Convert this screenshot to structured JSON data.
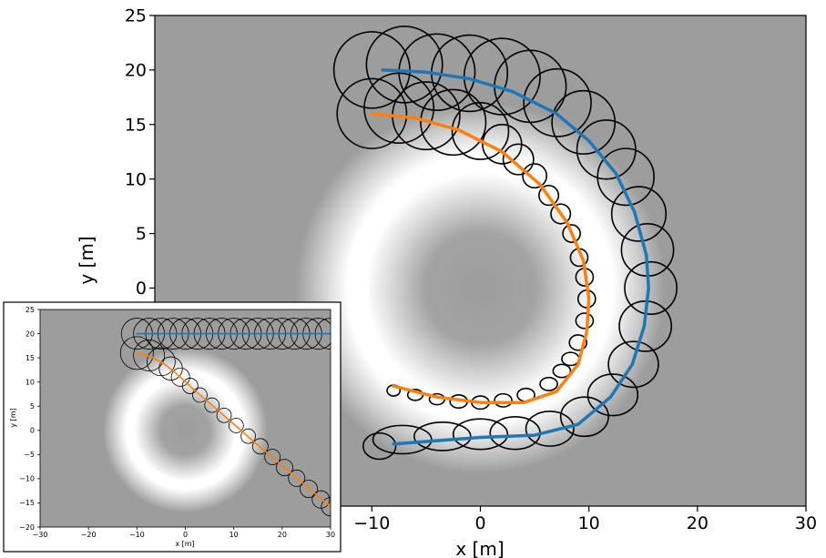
{
  "chart_data": [
    {
      "type": "line",
      "role": "main",
      "xlabel": "x [m]",
      "ylabel": "y [m]",
      "xlim": [
        -30,
        30
      ],
      "ylim": [
        -20,
        25
      ],
      "xticks": [
        -30,
        -20,
        -10,
        0,
        10,
        20,
        30
      ],
      "yticks": [
        -20,
        -15,
        -10,
        -5,
        0,
        5,
        10,
        15,
        20,
        25
      ],
      "background": "ring-shaped field: grey with white annulus centered at (0,0), radius ~10",
      "series": [
        {
          "color": "#1f77b4",
          "x": [
            -9,
            -5,
            -1,
            3,
            7,
            10,
            12.5,
            14.2,
            15.3,
            15.5,
            15.1,
            14,
            12,
            9,
            5,
            0,
            -4,
            -8
          ],
          "y": [
            20,
            19.8,
            19.2,
            18,
            16,
            13.5,
            10.5,
            7,
            3,
            0,
            -3.5,
            -7,
            -10,
            -12.5,
            -13.5,
            -13.7,
            -14,
            -14.3
          ]
        },
        {
          "color": "#ff7f0e",
          "x": [
            -10,
            -6,
            -2,
            2,
            5.5,
            8,
            9.5,
            10,
            9.8,
            9,
            7,
            4,
            0,
            -4,
            -8
          ],
          "y": [
            16,
            15.6,
            14.5,
            12.5,
            9.5,
            6,
            2.5,
            -1,
            -4,
            -7,
            -9.5,
            -10.5,
            -10.5,
            -10,
            -9
          ]
        }
      ],
      "uncertainty_ellipses": [
        {
          "series": 0,
          "x": [
            -10,
            -7,
            -4,
            -1,
            2,
            4.6,
            7.1,
            9.5,
            11.6,
            13.4,
            14.6,
            15.4,
            15.7,
            15.2,
            14.1,
            12.2,
            9.6,
            6.4,
            3.2,
            0,
            -3.5,
            -7.2,
            -9.3
          ],
          "y": [
            20,
            20.5,
            19.8,
            19.7,
            19.4,
            18.5,
            17,
            15.2,
            12.7,
            10.2,
            6.8,
            3.5,
            0,
            -3.5,
            -7,
            -9.8,
            -11.8,
            -12.9,
            -13.3,
            -13.4,
            -13.6,
            -13.9,
            -14.5
          ],
          "rx": [
            3.5,
            3.5,
            3.5,
            3.5,
            3.5,
            3.3,
            3.1,
            2.9,
            2.7,
            2.6,
            2.5,
            2.4,
            2.4,
            2.4,
            2.3,
            2.3,
            2.2,
            2.2,
            2.3,
            2.5,
            2.6,
            2.7,
            1.5
          ],
          "ry": [
            3.5,
            3.5,
            3.5,
            3.5,
            3.5,
            3.3,
            3.1,
            2.9,
            2.7,
            2.6,
            2.5,
            2.4,
            2.4,
            2.3,
            2.1,
            1.9,
            1.8,
            1.6,
            1.5,
            1.4,
            1.3,
            1.3,
            1.2
          ]
        },
        {
          "series": 1,
          "x": [
            -10,
            -7.5,
            -5,
            -2.5,
            0,
            2,
            3.5,
            5,
            6.3,
            7.4,
            8.4,
            9.1,
            9.6,
            9.8,
            9.6,
            9,
            8.3,
            7.5,
            6.3,
            4.2,
            2.1,
            0,
            -2,
            -4,
            -6,
            -8
          ],
          "y": [
            16,
            16.5,
            15.8,
            15.2,
            14.4,
            13.2,
            11.8,
            10.3,
            8.5,
            6.8,
            5,
            2.8,
            1,
            -1,
            -3,
            -5,
            -6.5,
            -7.6,
            -8.8,
            -9.8,
            -10.3,
            -10.5,
            -10.4,
            -10.2,
            -9.8,
            -9.4
          ],
          "rx": [
            3.2,
            3.2,
            3.1,
            3,
            2.6,
            1.8,
            1.4,
            1.1,
            0.9,
            0.9,
            0.8,
            0.8,
            0.8,
            0.8,
            0.8,
            0.8,
            0.8,
            0.8,
            0.8,
            0.8,
            0.8,
            0.8,
            0.8,
            0.7,
            0.7,
            0.6
          ],
          "ry": [
            3.2,
            3.2,
            3.1,
            3,
            2.6,
            1.8,
            1.4,
            1.1,
            0.9,
            0.9,
            0.8,
            0.8,
            0.8,
            0.8,
            0.7,
            0.7,
            0.6,
            0.6,
            0.6,
            0.6,
            0.6,
            0.6,
            0.6,
            0.5,
            0.5,
            0.5
          ]
        }
      ]
    },
    {
      "type": "line",
      "role": "inset",
      "xlabel": "x [m]",
      "ylabel": "y [m]",
      "xlim": [
        -30,
        30
      ],
      "ylim": [
        -20,
        25
      ],
      "xticks": [
        -30,
        -20,
        -10,
        0,
        10,
        20,
        30
      ],
      "yticks": [
        -20,
        -15,
        -10,
        -5,
        0,
        5,
        10,
        15,
        20,
        25
      ],
      "background": "ring-shaped field: grey with white annulus centered at (0,0), radius ~10",
      "series": [
        {
          "color": "#1f77b4",
          "x": [
            -10,
            30
          ],
          "y": [
            20,
            20
          ]
        },
        {
          "color": "#ff7f0e",
          "x": [
            -10,
            -7,
            -4,
            -1,
            2,
            6,
            10,
            14,
            18,
            22,
            26,
            30
          ],
          "y": [
            16,
            15.2,
            13.5,
            11,
            8.2,
            4.8,
            1.3,
            -2.2,
            -5.6,
            -9,
            -12.4,
            -15.8
          ]
        }
      ],
      "uncertainty_ellipses": [
        {
          "series": 0,
          "x": [
            -10,
            -7.5,
            -5,
            -2.5,
            0,
            2.5,
            5,
            7.5,
            10,
            12.5,
            15,
            17.5,
            20,
            22.5,
            25,
            27.5,
            30
          ],
          "y": [
            20,
            20,
            20,
            20,
            20,
            20,
            20,
            20,
            20,
            20,
            20,
            20,
            20,
            20,
            20,
            20,
            20
          ],
          "r": [
            3.2,
            3.2,
            3.2,
            3.2,
            3.2,
            3.2,
            3.2,
            3.2,
            3.2,
            3.2,
            3.2,
            3.2,
            3.2,
            3.2,
            3.2,
            3.2,
            3.2
          ]
        },
        {
          "series": 1,
          "x": [
            -10,
            -7.5,
            -5,
            -3,
            -1,
            1,
            3,
            5.5,
            8,
            10.5,
            13,
            15.5,
            18,
            20.5,
            23,
            25.5,
            28,
            30
          ],
          "y": [
            16,
            15.5,
            14.2,
            12.8,
            11,
            9.2,
            7.3,
            5.2,
            3.1,
            1,
            -1.2,
            -3.3,
            -5.5,
            -7.7,
            -9.9,
            -12.1,
            -14.3,
            -15.8
          ],
          "r": [
            3.4,
            3.2,
            2.9,
            2.4,
            1.9,
            1.6,
            1.5,
            1.5,
            1.5,
            1.5,
            1.5,
            1.6,
            1.6,
            1.7,
            1.7,
            1.8,
            1.8,
            1.9
          ]
        }
      ]
    }
  ]
}
